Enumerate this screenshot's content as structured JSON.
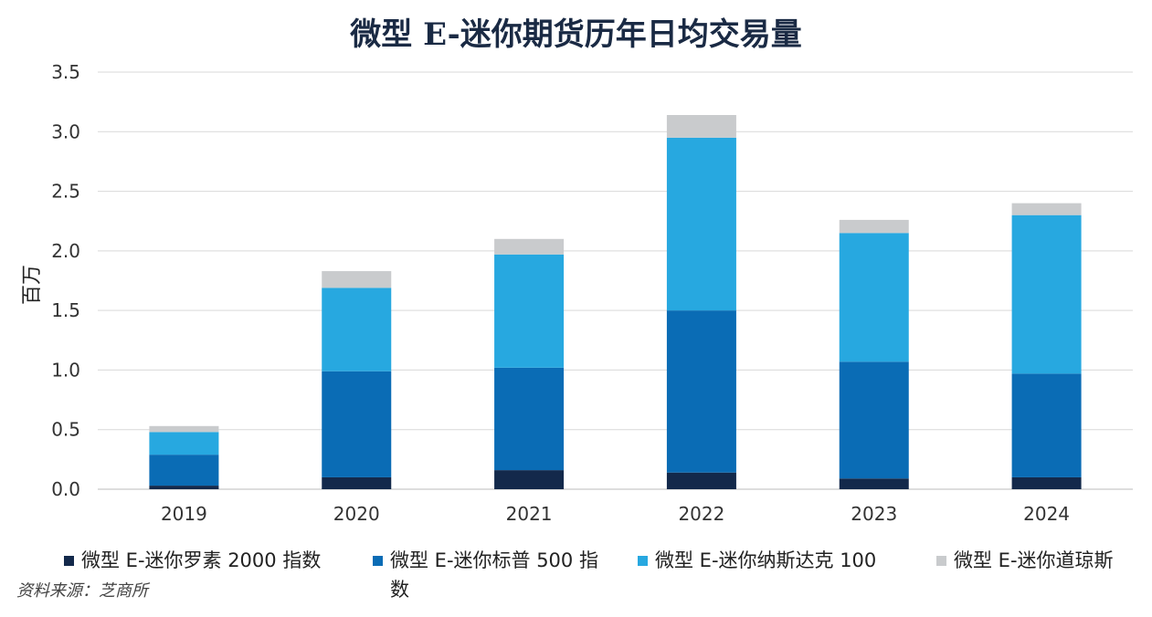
{
  "chart_data": {
    "type": "bar",
    "stacked": true,
    "title": "微型 E-迷你期货历年日均交易量",
    "ylabel": "百万",
    "xlabel": "",
    "ylim": [
      0,
      3.5
    ],
    "yticks": [
      "0.0",
      "0.5",
      "1.0",
      "1.5",
      "2.0",
      "2.5",
      "3.0",
      "3.5"
    ],
    "categories": [
      "2019",
      "2020",
      "2021",
      "2022",
      "2023",
      "2024"
    ],
    "grid": true,
    "legend_position": "bottom",
    "series": [
      {
        "name": "微型 E-迷你罗素 2000 指数",
        "color": "#13294b",
        "values": [
          0.03,
          0.1,
          0.16,
          0.14,
          0.09,
          0.1
        ]
      },
      {
        "name": "微型 E-迷你标普 500 指数",
        "color": "#0a6cb5",
        "values": [
          0.26,
          0.89,
          0.86,
          1.36,
          0.98,
          0.87
        ]
      },
      {
        "name": "微型 E-迷你纳斯达克 100",
        "color": "#27a8e0",
        "values": [
          0.19,
          0.7,
          0.95,
          1.45,
          1.08,
          1.33
        ]
      },
      {
        "name": "微型 E-迷你道琼斯",
        "color": "#c9cbcd",
        "values": [
          0.05,
          0.14,
          0.13,
          0.19,
          0.11,
          0.1
        ]
      }
    ]
  },
  "legend": {
    "items": [
      {
        "label": "微型 E-迷你罗素 2000 指数",
        "color": "#13294b"
      },
      {
        "label": "微型 E-迷你标普 500 指\n数",
        "color": "#0a6cb5"
      },
      {
        "label": "微型 E-迷你纳斯达克 100",
        "color": "#27a8e0"
      },
      {
        "label": "微型 E-迷你道琼斯",
        "color": "#c9cbcd"
      }
    ]
  },
  "source": "资料来源：芝商所"
}
